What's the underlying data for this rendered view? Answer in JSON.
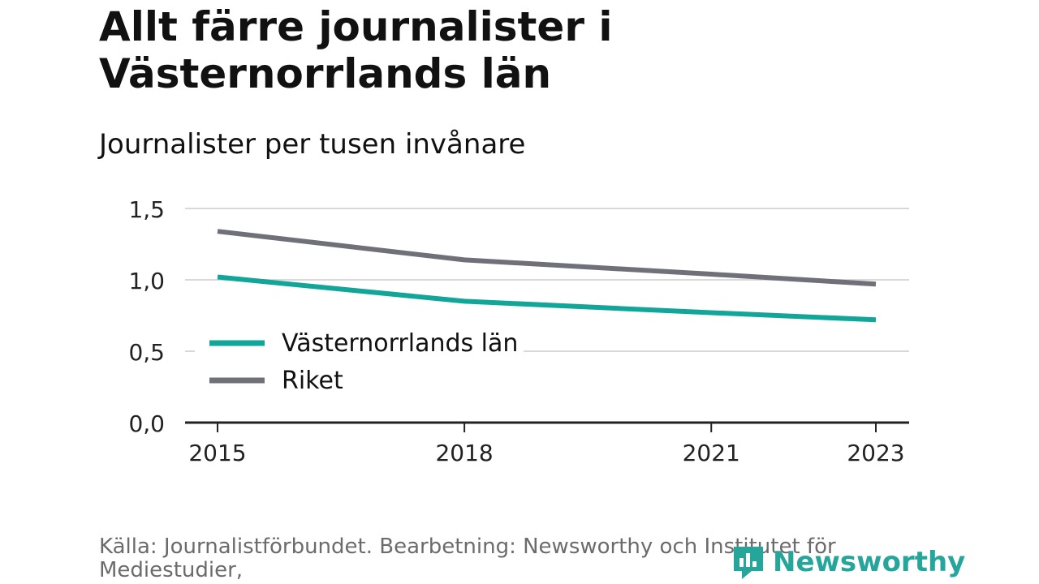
{
  "title": "Allt färre journalister i Västernorrlands län",
  "subtitle": "Journalister per tusen invånare",
  "source": "Källa: Journalistförbundet. Bearbetning: Newsworthy och Institutet för Mediestudier,",
  "logo": {
    "text": "Newsworthy",
    "icon": "newsworthy-logo-icon",
    "color": "#26a69a"
  },
  "chart_data": {
    "type": "line",
    "title": "Allt färre journalister i Västernorrlands län",
    "subtitle": "Journalister per tusen invånare",
    "xlabel": "",
    "ylabel": "",
    "x": [
      2015,
      2018,
      2021,
      2023
    ],
    "x_tick_labels": [
      "2015",
      "2018",
      "2021",
      "2023"
    ],
    "xlim": [
      2015,
      2023
    ],
    "ylim": [
      0,
      1.5
    ],
    "y_ticks": [
      0,
      0.5,
      1.0,
      1.5
    ],
    "y_tick_labels": [
      "0,0",
      "0,5",
      "1,0",
      "1,5"
    ],
    "grid": true,
    "legend_position": "center-left",
    "series": [
      {
        "name": "Västernorrlands län",
        "color": "#12a59a",
        "values": [
          1.02,
          0.85,
          0.77,
          0.72
        ]
      },
      {
        "name": "Riket",
        "color": "#707078",
        "values": [
          1.34,
          1.14,
          1.04,
          0.97
        ]
      }
    ]
  }
}
